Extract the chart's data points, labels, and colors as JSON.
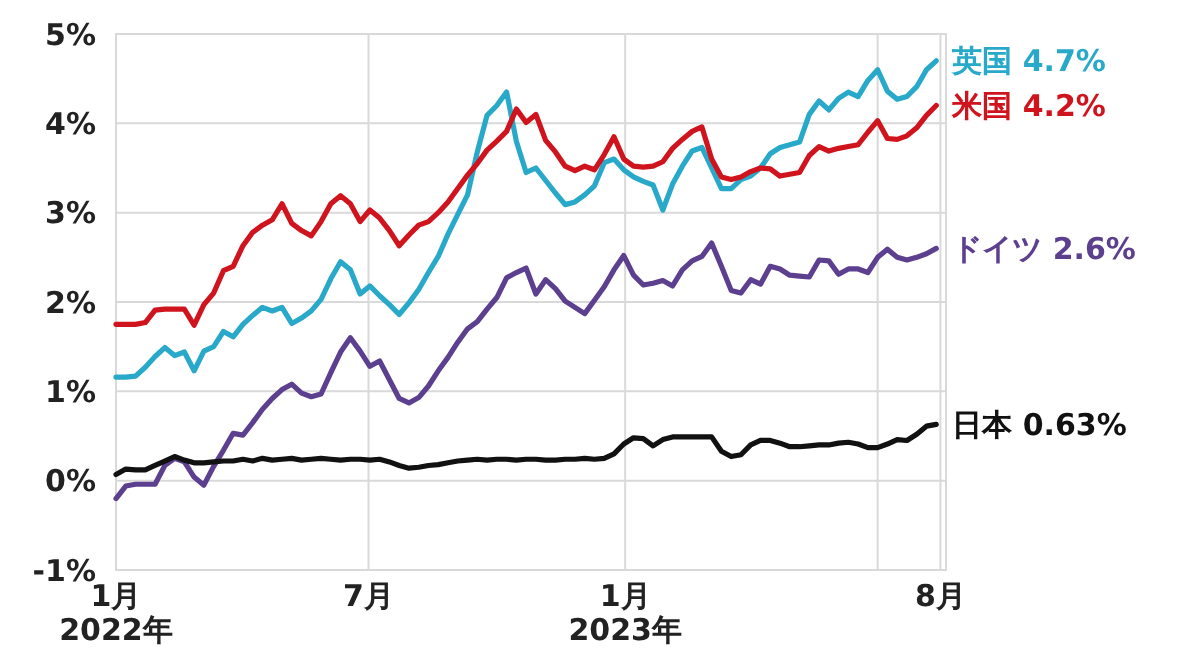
{
  "chart_data": {
    "type": "line",
    "x": [
      "2022-01-01",
      "2022-01-08",
      "2022-01-15",
      "2022-01-22",
      "2022-01-29",
      "2022-02-05",
      "2022-02-12",
      "2022-02-19",
      "2022-02-26",
      "2022-03-05",
      "2022-03-12",
      "2022-03-19",
      "2022-03-26",
      "2022-04-02",
      "2022-04-09",
      "2022-04-16",
      "2022-04-23",
      "2022-04-30",
      "2022-05-07",
      "2022-05-14",
      "2022-05-21",
      "2022-05-28",
      "2022-06-04",
      "2022-06-11",
      "2022-06-18",
      "2022-06-25",
      "2022-07-02",
      "2022-07-09",
      "2022-07-16",
      "2022-07-23",
      "2022-07-30",
      "2022-08-06",
      "2022-08-13",
      "2022-08-20",
      "2022-08-27",
      "2022-09-03",
      "2022-09-10",
      "2022-09-17",
      "2022-09-24",
      "2022-10-01",
      "2022-10-08",
      "2022-10-15",
      "2022-10-22",
      "2022-10-29",
      "2022-11-05",
      "2022-11-12",
      "2022-11-19",
      "2022-11-26",
      "2022-12-03",
      "2022-12-10",
      "2022-12-17",
      "2022-12-24",
      "2022-12-31",
      "2023-01-07",
      "2023-01-14",
      "2023-01-21",
      "2023-01-28",
      "2023-02-04",
      "2023-02-11",
      "2023-02-18",
      "2023-02-25",
      "2023-03-04",
      "2023-03-11",
      "2023-03-18",
      "2023-03-25",
      "2023-04-01",
      "2023-04-08",
      "2023-04-15",
      "2023-04-22",
      "2023-04-29",
      "2023-05-06",
      "2023-05-13",
      "2023-05-20",
      "2023-05-27",
      "2023-06-03",
      "2023-06-10",
      "2023-06-17",
      "2023-06-24",
      "2023-07-01",
      "2023-07-08",
      "2023-07-15",
      "2023-07-22",
      "2023-07-29",
      "2023-08-05",
      "2023-08-12"
    ],
    "xlim": [
      "2022-01-01",
      "2023-08-19"
    ],
    "xticks": [
      {
        "value": "2022-01-01",
        "label": "1月\n2022年"
      },
      {
        "value": "2022-07-01",
        "label": "7月"
      },
      {
        "value": "2023-01-01",
        "label": "1月\n2023年"
      },
      {
        "value": "2023-07-01",
        "label": null
      },
      {
        "value": "2023-08-15",
        "label": "8月"
      }
    ],
    "ylim": [
      -1,
      5
    ],
    "yticks": [
      {
        "value": -1,
        "label": "-1%"
      },
      {
        "value": 0,
        "label": "0%"
      },
      {
        "value": 1,
        "label": "1%"
      },
      {
        "value": 2,
        "label": "2%"
      },
      {
        "value": 3,
        "label": "3%"
      },
      {
        "value": 4,
        "label": "4%"
      },
      {
        "value": 5,
        "label": "5%"
      }
    ],
    "grid": true,
    "marker": "none",
    "series": [
      {
        "name": "英国",
        "color": "#29a9c9",
        "values": [
          1.16,
          1.16,
          1.17,
          1.27,
          1.39,
          1.49,
          1.4,
          1.44,
          1.23,
          1.45,
          1.5,
          1.67,
          1.61,
          1.75,
          1.85,
          1.94,
          1.9,
          1.94,
          1.76,
          1.82,
          1.9,
          2.03,
          2.26,
          2.45,
          2.36,
          2.09,
          2.18,
          2.07,
          1.97,
          1.86,
          1.99,
          2.14,
          2.33,
          2.51,
          2.76,
          2.98,
          3.2,
          3.68,
          4.09,
          4.2,
          4.35,
          3.8,
          3.45,
          3.5,
          3.36,
          3.22,
          3.09,
          3.12,
          3.2,
          3.3,
          3.56,
          3.6,
          3.48,
          3.4,
          3.35,
          3.31,
          3.03,
          3.32,
          3.52,
          3.69,
          3.73,
          3.5,
          3.27,
          3.27,
          3.37,
          3.41,
          3.5,
          3.66,
          3.73,
          3.76,
          3.79,
          4.1,
          4.25,
          4.15,
          4.28,
          4.35,
          4.3,
          4.48,
          4.6,
          4.36,
          4.27,
          4.3,
          4.41,
          4.6,
          4.7
        ],
        "value_labels": [
          null,
          null,
          null,
          null,
          null,
          null,
          null,
          null,
          null,
          null,
          null,
          null,
          null,
          null,
          null,
          null,
          null,
          null,
          null,
          null,
          null,
          null,
          null,
          null,
          null,
          null,
          null,
          null,
          null,
          null,
          null,
          null,
          null,
          null,
          null,
          null,
          null,
          null,
          null,
          null,
          null,
          null,
          null,
          null,
          null,
          null,
          null,
          null,
          null,
          null,
          null,
          null,
          null,
          null,
          null,
          null,
          null,
          null,
          null,
          null,
          null,
          null,
          null,
          null,
          null,
          null,
          null,
          null,
          null,
          null,
          null,
          null,
          null,
          null,
          null,
          null,
          null,
          null,
          null,
          null,
          null,
          null,
          null,
          null,
          "4.7%"
        ]
      },
      {
        "name": "米国",
        "color": "#d0141e",
        "values": [
          1.75,
          1.75,
          1.75,
          1.77,
          1.91,
          1.92,
          1.92,
          1.92,
          1.74,
          1.97,
          2.1,
          2.35,
          2.4,
          2.63,
          2.78,
          2.86,
          2.92,
          3.1,
          2.88,
          2.8,
          2.74,
          2.9,
          3.1,
          3.19,
          3.1,
          2.9,
          3.03,
          2.94,
          2.8,
          2.63,
          2.75,
          2.86,
          2.9,
          3.0,
          3.12,
          3.27,
          3.42,
          3.55,
          3.7,
          3.8,
          3.91,
          4.16,
          4.01,
          4.1,
          3.81,
          3.68,
          3.52,
          3.47,
          3.52,
          3.48,
          3.65,
          3.85,
          3.6,
          3.52,
          3.51,
          3.52,
          3.57,
          3.72,
          3.82,
          3.91,
          3.96,
          3.6,
          3.4,
          3.37,
          3.4,
          3.46,
          3.5,
          3.49,
          3.41,
          3.43,
          3.45,
          3.64,
          3.74,
          3.69,
          3.72,
          3.74,
          3.76,
          3.9,
          4.03,
          3.83,
          3.82,
          3.86,
          3.95,
          4.09,
          4.2
        ],
        "value_labels": [
          null,
          null,
          null,
          null,
          null,
          null,
          null,
          null,
          null,
          null,
          null,
          null,
          null,
          null,
          null,
          null,
          null,
          null,
          null,
          null,
          null,
          null,
          null,
          null,
          null,
          null,
          null,
          null,
          null,
          null,
          null,
          null,
          null,
          null,
          null,
          null,
          null,
          null,
          null,
          null,
          null,
          null,
          null,
          null,
          null,
          null,
          null,
          null,
          null,
          null,
          null,
          null,
          null,
          null,
          null,
          null,
          null,
          null,
          null,
          null,
          null,
          null,
          null,
          null,
          null,
          null,
          null,
          null,
          null,
          null,
          null,
          null,
          null,
          null,
          null,
          null,
          null,
          null,
          null,
          null,
          null,
          null,
          null,
          null,
          "4.2%"
        ]
      },
      {
        "name": "ドイツ",
        "color": "#5c3f8e",
        "values": [
          -0.2,
          -0.06,
          -0.04,
          -0.04,
          -0.04,
          0.17,
          0.25,
          0.21,
          0.04,
          -0.05,
          0.16,
          0.34,
          0.53,
          0.51,
          0.65,
          0.8,
          0.92,
          1.02,
          1.08,
          0.98,
          0.94,
          0.97,
          1.21,
          1.44,
          1.6,
          1.45,
          1.28,
          1.34,
          1.13,
          0.92,
          0.87,
          0.93,
          1.06,
          1.23,
          1.38,
          1.55,
          1.7,
          1.78,
          1.92,
          2.05,
          2.27,
          2.33,
          2.38,
          2.09,
          2.25,
          2.15,
          2.01,
          1.94,
          1.87,
          2.02,
          2.17,
          2.36,
          2.52,
          2.3,
          2.19,
          2.21,
          2.24,
          2.18,
          2.36,
          2.46,
          2.51,
          2.66,
          2.4,
          2.13,
          2.1,
          2.25,
          2.2,
          2.4,
          2.37,
          2.3,
          2.29,
          2.28,
          2.47,
          2.46,
          2.31,
          2.37,
          2.37,
          2.33,
          2.5,
          2.59,
          2.5,
          2.47,
          2.5,
          2.54,
          2.6
        ],
        "value_labels": [
          null,
          null,
          null,
          null,
          null,
          null,
          null,
          null,
          null,
          null,
          null,
          null,
          null,
          null,
          null,
          null,
          null,
          null,
          null,
          null,
          null,
          null,
          null,
          null,
          null,
          null,
          null,
          null,
          null,
          null,
          null,
          null,
          null,
          null,
          null,
          null,
          null,
          null,
          null,
          null,
          null,
          null,
          null,
          null,
          null,
          null,
          null,
          null,
          null,
          null,
          null,
          null,
          null,
          null,
          null,
          null,
          null,
          null,
          null,
          null,
          null,
          null,
          null,
          null,
          null,
          null,
          null,
          null,
          null,
          null,
          null,
          null,
          null,
          null,
          null,
          null,
          null,
          null,
          null,
          null,
          null,
          null,
          null,
          null,
          "2.6%"
        ]
      },
      {
        "name": "日本",
        "color": "#111111",
        "values": [
          0.07,
          0.13,
          0.12,
          0.12,
          0.17,
          0.22,
          0.27,
          0.23,
          0.2,
          0.2,
          0.21,
          0.22,
          0.22,
          0.24,
          0.22,
          0.25,
          0.23,
          0.24,
          0.25,
          0.23,
          0.24,
          0.25,
          0.24,
          0.23,
          0.24,
          0.24,
          0.23,
          0.24,
          0.21,
          0.17,
          0.14,
          0.15,
          0.17,
          0.18,
          0.2,
          0.22,
          0.23,
          0.24,
          0.23,
          0.24,
          0.24,
          0.23,
          0.24,
          0.24,
          0.23,
          0.23,
          0.24,
          0.24,
          0.25,
          0.24,
          0.25,
          0.3,
          0.41,
          0.48,
          0.47,
          0.39,
          0.46,
          0.49,
          0.49,
          0.49,
          0.49,
          0.49,
          0.33,
          0.27,
          0.29,
          0.4,
          0.45,
          0.45,
          0.42,
          0.38,
          0.38,
          0.39,
          0.4,
          0.4,
          0.42,
          0.43,
          0.41,
          0.37,
          0.37,
          0.41,
          0.46,
          0.45,
          0.52,
          0.61,
          0.63
        ],
        "value_labels": [
          null,
          null,
          null,
          null,
          null,
          null,
          null,
          null,
          null,
          null,
          null,
          null,
          null,
          null,
          null,
          null,
          null,
          null,
          null,
          null,
          null,
          null,
          null,
          null,
          null,
          null,
          null,
          null,
          null,
          null,
          null,
          null,
          null,
          null,
          null,
          null,
          null,
          null,
          null,
          null,
          null,
          null,
          null,
          null,
          null,
          null,
          null,
          null,
          null,
          null,
          null,
          null,
          null,
          null,
          null,
          null,
          null,
          null,
          null,
          null,
          null,
          null,
          null,
          null,
          null,
          null,
          null,
          null,
          null,
          null,
          null,
          null,
          null,
          null,
          null,
          null,
          null,
          null,
          null,
          null,
          null,
          null,
          null,
          null,
          "0.63%"
        ]
      }
    ]
  }
}
